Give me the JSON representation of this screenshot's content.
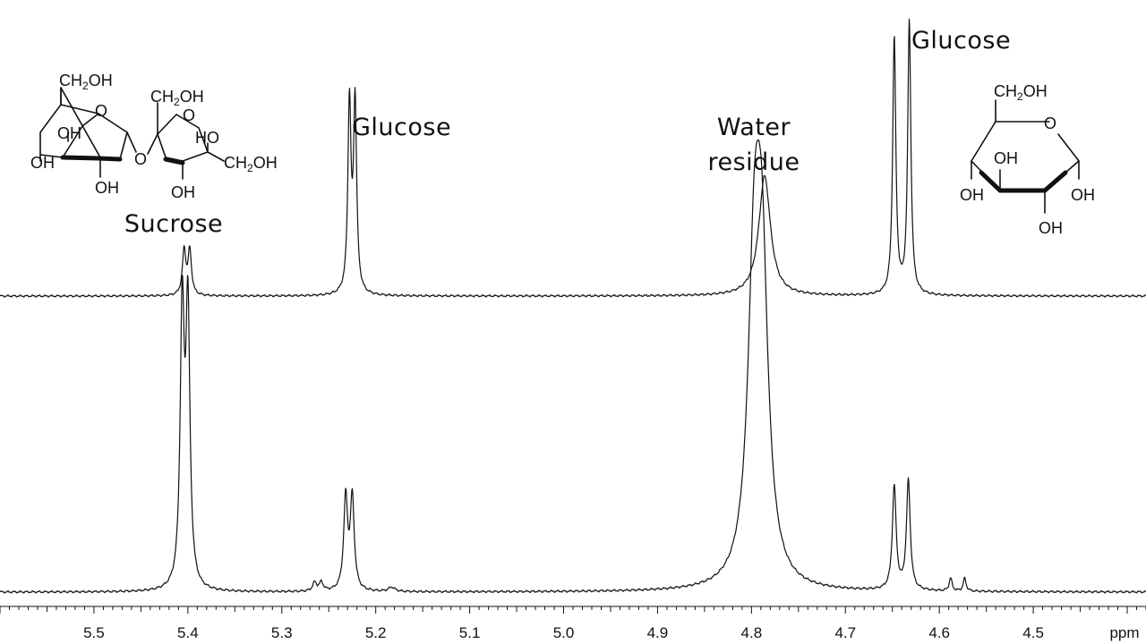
{
  "chart_data": {
    "type": "line",
    "xlabel": "ppm",
    "xlim": [
      5.6,
      4.38
    ],
    "x_reversed": true,
    "ticks": [
      {
        "v": 5.5,
        "label": "5.5"
      },
      {
        "v": 5.4,
        "label": "5.4"
      },
      {
        "v": 5.3,
        "label": "5.3"
      },
      {
        "v": 5.2,
        "label": "5.2"
      },
      {
        "v": 5.1,
        "label": "5.1"
      },
      {
        "v": 5.0,
        "label": "5.0"
      },
      {
        "v": 4.9,
        "label": "4.9"
      },
      {
        "v": 4.8,
        "label": "4.8"
      },
      {
        "v": 4.7,
        "label": "4.7"
      },
      {
        "v": 4.6,
        "label": "4.6"
      },
      {
        "v": 4.5,
        "label": "4.5"
      }
    ],
    "series": [
      {
        "peaks": [
          {
            "x": 5.404,
            "h": 0.16,
            "w": 0.0022
          },
          {
            "x": 5.398,
            "h": 0.16,
            "w": 0.0022
          },
          {
            "x": 5.228,
            "h": 0.68,
            "w": 0.002
          },
          {
            "x": 5.222,
            "h": 0.68,
            "w": 0.002
          },
          {
            "x": 4.786,
            "h": 0.43,
            "w": 0.0075
          },
          {
            "x": 4.648,
            "h": 0.92,
            "w": 0.002
          },
          {
            "x": 4.632,
            "h": 0.98,
            "w": 0.002
          }
        ]
      },
      {
        "peaks": [
          {
            "x": 5.406,
            "h": 0.95,
            "w": 0.0026
          },
          {
            "x": 5.4,
            "h": 0.95,
            "w": 0.0026
          },
          {
            "x": 5.265,
            "h": 0.03,
            "w": 0.0025
          },
          {
            "x": 5.258,
            "h": 0.03,
            "w": 0.0025
          },
          {
            "x": 5.232,
            "h": 0.32,
            "w": 0.0025
          },
          {
            "x": 5.225,
            "h": 0.32,
            "w": 0.0025
          },
          {
            "x": 5.183,
            "h": 0.015,
            "w": 0.004
          },
          {
            "x": 4.797,
            "h": 0.98,
            "w": 0.008
          },
          {
            "x": 4.789,
            "h": 0.98,
            "w": 0.008
          },
          {
            "x": 4.648,
            "h": 0.36,
            "w": 0.0024
          },
          {
            "x": 4.633,
            "h": 0.38,
            "w": 0.0024
          },
          {
            "x": 4.588,
            "h": 0.045,
            "w": 0.0018
          },
          {
            "x": 4.573,
            "h": 0.045,
            "w": 0.0018
          }
        ]
      }
    ],
    "annotations": [
      {
        "text": "Sucrose"
      },
      {
        "text": "Glucose"
      },
      {
        "text": "Water"
      },
      {
        "text": "residue"
      },
      {
        "text": "Glucose"
      }
    ]
  },
  "structures": {
    "sucrose": {
      "ch2oh_a": "CH",
      "ch2oh_a_sub": "2",
      "ch2oh_a_end": "OH",
      "ch2oh_b": "CH",
      "ch2oh_b_sub": "2",
      "ch2oh_b_end": "OH",
      "ch2oh_c": "CH",
      "ch2oh_c_sub": "2",
      "ch2oh_c_end": "OH",
      "oh_1": "OH",
      "oh_2": "OH",
      "oh_3": "OH",
      "oh_4": "OH",
      "ho_1": "HO",
      "o_ring1": "O",
      "o_ring2": "O",
      "o_bridge": "O"
    },
    "glucose": {
      "ch2oh": "CH",
      "ch2oh_sub": "2",
      "ch2oh_end": "OH",
      "o_ring": "O",
      "oh_1": "OH",
      "oh_2": "OH",
      "oh_3": "OH",
      "oh_4": "OH"
    }
  }
}
